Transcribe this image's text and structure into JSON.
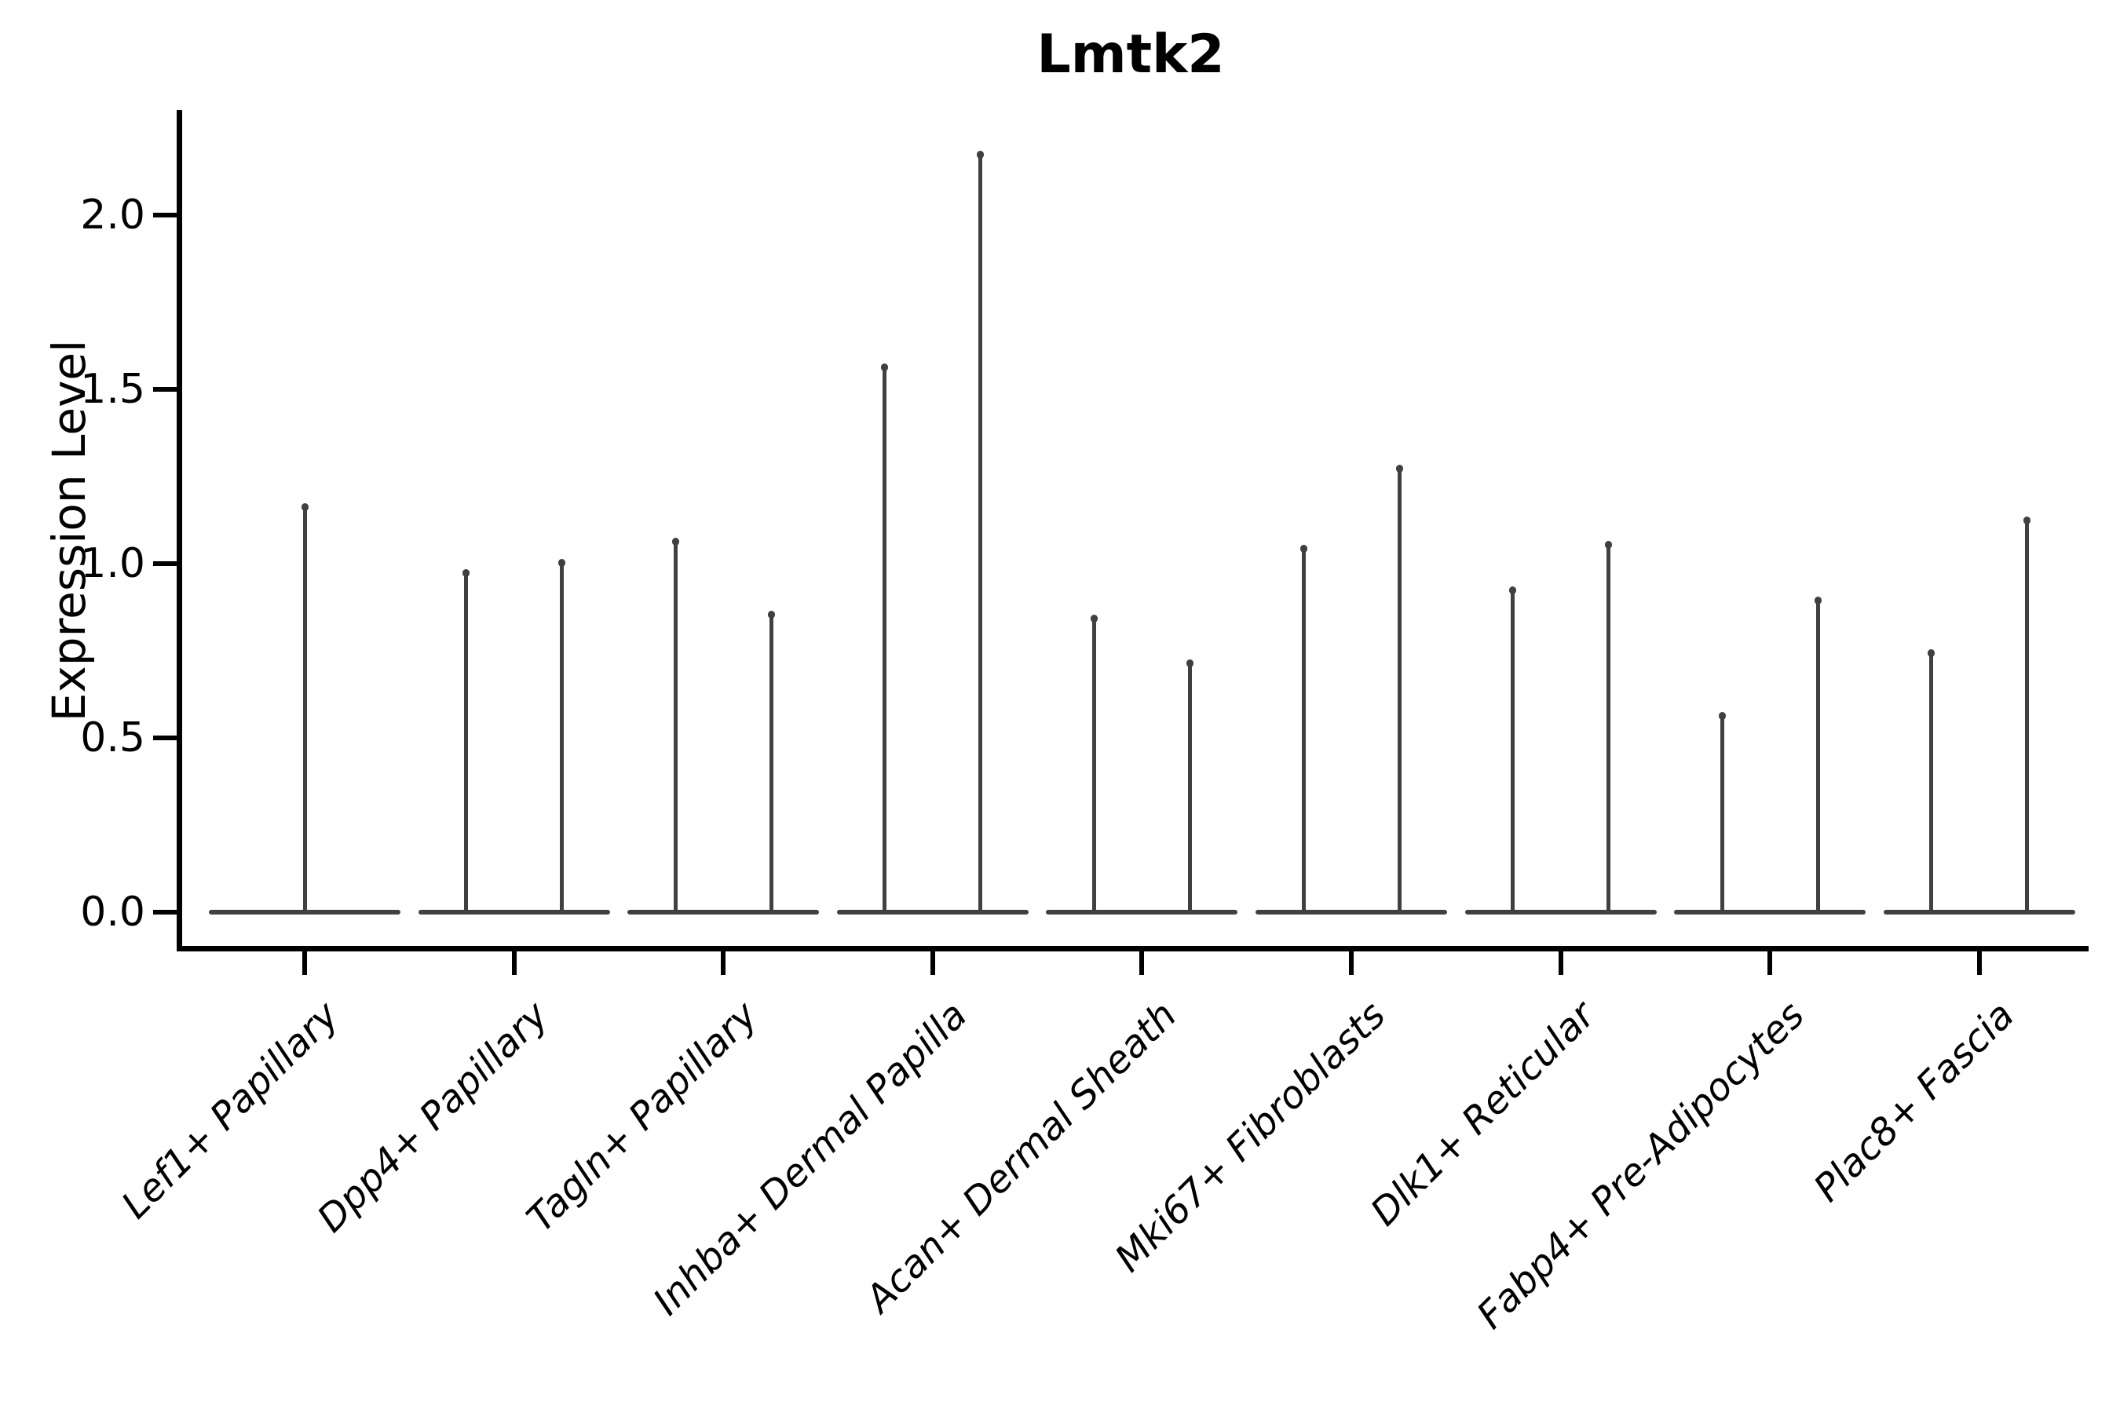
{
  "figure": {
    "title": "Lmtk2",
    "ylabel": "Expression Level"
  },
  "chart_data": {
    "type": "violin",
    "title": "Lmtk2",
    "xlabel": "",
    "ylabel": "Expression Level",
    "legend": "none",
    "grid": false,
    "background": "#ffffff",
    "axis_color": "#000000",
    "violin_color": "#404040",
    "ylim": [
      -0.11,
      2.29
    ],
    "y_ticks": [
      0.0,
      0.5,
      1.0,
      1.5,
      2.0
    ],
    "y_tick_labels": [
      "0.0",
      "0.5",
      "1.0",
      "1.5",
      "2.0"
    ],
    "x_tick_label_style": "italic, rotated 45 degrees",
    "categories": [
      "Lef1+ Papillary",
      "Dpp4+ Papillary",
      "Tagln+ Papillary",
      "Inhba+ Dermal Papilla",
      "Acan+ Dermal Sheath",
      "Mki67+ Fibroblasts",
      "Dlk1+ Reticular",
      "Fabp4+ Pre-Adipocytes",
      "Plac8+ Fascia"
    ],
    "description": "Violin plot of Lmtk2 expression per fibroblast subpopulation; each violin is collapsed at 0 (wide flat base) with a thin spike up to its maximum expression value. Most categories contain two side-by-side violins.",
    "violins": [
      {
        "category": "Lef1+ Papillary",
        "maxima": [
          1.17
        ]
      },
      {
        "category": "Dpp4+ Papillary",
        "maxima": [
          0.98,
          1.01
        ]
      },
      {
        "category": "Tagln+ Papillary",
        "maxima": [
          1.07,
          0.86
        ]
      },
      {
        "category": "Inhba+ Dermal Papilla",
        "maxima": [
          1.57,
          2.18
        ]
      },
      {
        "category": "Acan+ Dermal Sheath",
        "maxima": [
          0.85,
          0.72
        ]
      },
      {
        "category": "Mki67+ Fibroblasts",
        "maxima": [
          1.05,
          1.28
        ]
      },
      {
        "category": "Dlk1+ Reticular",
        "maxima": [
          0.93,
          1.06
        ]
      },
      {
        "category": "Fabp4+ Pre-Adipocytes",
        "maxima": [
          0.57,
          0.9
        ]
      },
      {
        "category": "Plac8+ Fascia",
        "maxima": [
          0.75,
          1.13
        ]
      }
    ]
  }
}
